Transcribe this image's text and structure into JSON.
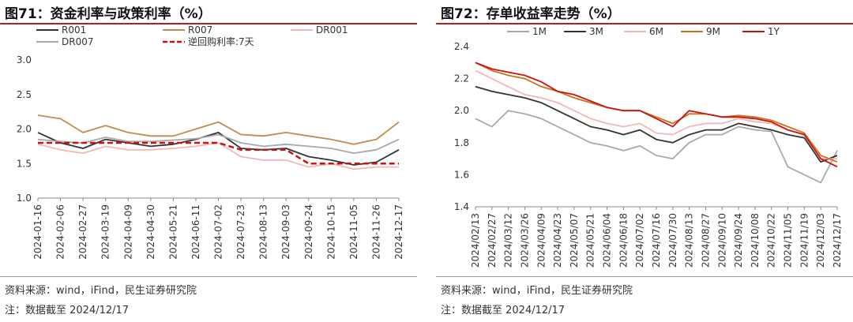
{
  "colors": {
    "R001": "#333333",
    "R007": "#c48a4e",
    "DR001": "#f2b7b7",
    "DR007": "#a8a8a8",
    "policy": "#cc1111",
    "1M": "#a9a9a9",
    "3M": "#333333",
    "6M": "#f2b7b7",
    "9M": "#c8741e",
    "1Y": "#cc1111",
    "accent": "#b22222"
  },
  "left": {
    "title": "图71：资金利率与政策利率（%）",
    "source": "资料来源：wind，iFind，民生证券研究院",
    "note": "注：数据截至 2024/12/17"
  },
  "right": {
    "title": "图72：存单收益率走势（%）",
    "source": "资料来源：wind，iFind，民生证券研究院",
    "note": "注：数据截至 2024/12/17"
  },
  "chart_data": [
    {
      "type": "line",
      "title": "资金利率与政策利率（%）",
      "ylim": [
        1.0,
        3.0
      ],
      "yticks": [
        "1.0",
        "1.5",
        "2.0",
        "2.5",
        "3.0"
      ],
      "categories": [
        "2024-01-16",
        "2024-02-06",
        "2024-02-27",
        "2024-03-19",
        "2024-04-09",
        "2024-04-30",
        "2024-05-21",
        "2024-06-11",
        "2024-07-02",
        "2024-07-23",
        "2024-08-13",
        "2024-09-03",
        "2024-09-24",
        "2024-10-15",
        "2024-11-05",
        "2024-11-26",
        "2024-12-17"
      ],
      "series": [
        {
          "name": "R001",
          "style": "solid",
          "values": [
            1.95,
            1.8,
            1.72,
            1.85,
            1.8,
            1.75,
            1.78,
            1.85,
            1.95,
            1.72,
            1.7,
            1.72,
            1.6,
            1.55,
            1.48,
            1.52,
            1.7
          ]
        },
        {
          "name": "R007",
          "style": "solid",
          "values": [
            2.2,
            2.15,
            1.95,
            2.05,
            1.95,
            1.9,
            1.9,
            2.0,
            2.1,
            1.92,
            1.9,
            1.95,
            1.9,
            1.85,
            1.78,
            1.85,
            2.1
          ]
        },
        {
          "name": "DR001",
          "style": "solid",
          "values": [
            1.78,
            1.7,
            1.65,
            1.75,
            1.7,
            1.7,
            1.72,
            1.75,
            1.8,
            1.6,
            1.55,
            1.55,
            1.45,
            1.5,
            1.42,
            1.45,
            1.45
          ]
        },
        {
          "name": "DR007",
          "style": "solid",
          "values": [
            1.85,
            1.82,
            1.8,
            1.88,
            1.82,
            1.82,
            1.84,
            1.86,
            1.92,
            1.8,
            1.75,
            1.78,
            1.75,
            1.72,
            1.65,
            1.7,
            1.85
          ]
        },
        {
          "name": "逆回购利率:7天",
          "style": "dashed",
          "values": [
            1.8,
            1.8,
            1.8,
            1.8,
            1.8,
            1.8,
            1.8,
            1.8,
            1.8,
            1.7,
            1.7,
            1.7,
            1.5,
            1.5,
            1.5,
            1.5,
            1.5
          ]
        }
      ]
    },
    {
      "type": "line",
      "title": "存单收益率走势（%）",
      "ylim": [
        1.4,
        2.4
      ],
      "yticks": [
        "1.4",
        "1.6",
        "1.8",
        "2.0",
        "2.2",
        "2.4"
      ],
      "categories": [
        "2024/02/13",
        "2024/02/27",
        "2024/03/12",
        "2024/03/26",
        "2024/04/09",
        "2024/04/23",
        "2024/05/07",
        "2024/05/21",
        "2024/06/04",
        "2024/06/18",
        "2024/07/02",
        "2024/07/16",
        "2024/07/30",
        "2024/08/13",
        "2024/08/27",
        "2024/09/10",
        "2024/09/24",
        "2024/10/08",
        "2024/10/22",
        "2024/11/05",
        "2024/11/19",
        "2024/12/03",
        "2024/12/17"
      ],
      "series": [
        {
          "name": "1M",
          "values": [
            1.95,
            1.9,
            2.0,
            1.98,
            1.95,
            1.9,
            1.85,
            1.8,
            1.78,
            1.75,
            1.78,
            1.72,
            1.7,
            1.8,
            1.85,
            1.85,
            1.9,
            1.88,
            1.87,
            1.65,
            1.6,
            1.55,
            1.75
          ]
        },
        {
          "name": "3M",
          "values": [
            2.15,
            2.12,
            2.1,
            2.08,
            2.05,
            2.0,
            1.95,
            1.9,
            1.88,
            1.85,
            1.88,
            1.82,
            1.8,
            1.85,
            1.88,
            1.88,
            1.92,
            1.9,
            1.88,
            1.85,
            1.83,
            1.68,
            1.72
          ]
        },
        {
          "name": "6M",
          "values": [
            2.25,
            2.2,
            2.15,
            2.1,
            2.08,
            2.05,
            2.0,
            1.95,
            1.92,
            1.9,
            1.92,
            1.86,
            1.85,
            1.9,
            1.92,
            1.92,
            1.95,
            1.93,
            1.92,
            1.88,
            1.85,
            1.7,
            1.7
          ]
        },
        {
          "name": "9M",
          "values": [
            2.3,
            2.25,
            2.22,
            2.2,
            2.15,
            2.12,
            2.08,
            2.05,
            2.02,
            2.0,
            2.0,
            1.96,
            1.92,
            1.98,
            1.98,
            1.96,
            1.97,
            1.96,
            1.94,
            1.9,
            1.86,
            1.72,
            1.68
          ]
        },
        {
          "name": "1Y",
          "values": [
            2.3,
            2.26,
            2.24,
            2.22,
            2.18,
            2.12,
            2.1,
            2.06,
            2.02,
            2.0,
            2.0,
            1.95,
            1.9,
            2.0,
            1.98,
            1.96,
            1.96,
            1.95,
            1.93,
            1.88,
            1.85,
            1.7,
            1.65
          ]
        }
      ]
    }
  ]
}
